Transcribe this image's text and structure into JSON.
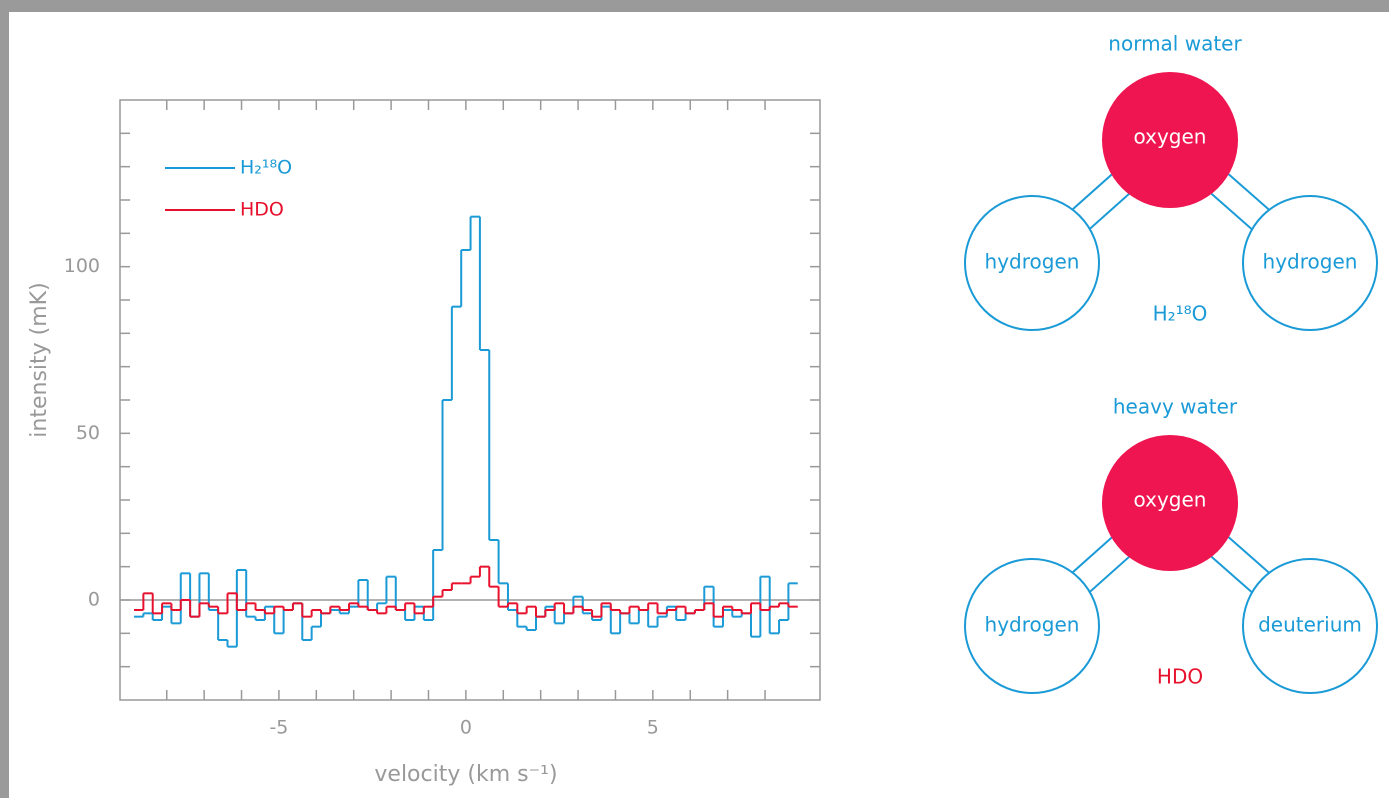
{
  "chart_data": {
    "type": "step",
    "xlabel": "velocity (km s⁻¹)",
    "ylabel": "intensity (mK)",
    "xlim": [
      -9.25,
      9.47
    ],
    "ylim": [
      -30,
      150
    ],
    "xticks": [
      -5,
      0,
      5
    ],
    "yticks": [
      0,
      50,
      100
    ],
    "xminorticks": [
      -8,
      -7,
      -6,
      -5,
      -4,
      -3,
      -2,
      -1,
      0,
      1,
      2,
      3,
      4,
      5,
      6,
      7,
      8
    ],
    "yminorticks": [
      -20,
      -10,
      0,
      10,
      20,
      30,
      40,
      50,
      60,
      70,
      80,
      90,
      100,
      110,
      120,
      130,
      140
    ],
    "legend": "upper left",
    "x": [
      -8.75,
      -8.5,
      -8.25,
      -8,
      -7.75,
      -7.5,
      -7.25,
      -7,
      -6.75,
      -6.5,
      -6.25,
      -6,
      -5.75,
      -5.5,
      -5.25,
      -5,
      -4.75,
      -4.5,
      -4.25,
      -4,
      -3.75,
      -3.5,
      -3.25,
      -3,
      -2.75,
      -2.5,
      -2.25,
      -2,
      -1.75,
      -1.5,
      -1.25,
      -1,
      -0.75,
      -0.5,
      -0.25,
      0,
      0.25,
      0.5,
      0.75,
      1,
      1.25,
      1.5,
      1.75,
      2,
      2.25,
      2.5,
      2.75,
      3,
      3.25,
      3.5,
      3.75,
      4,
      4.25,
      4.5,
      4.75,
      5,
      5.25,
      5.5,
      5.75,
      6,
      6.25,
      6.5,
      6.75,
      7,
      7.25,
      7.5,
      7.75,
      8,
      8.25,
      8.5,
      8.75
    ],
    "series": [
      {
        "name": "H₂¹⁸O",
        "color": "#1a9ad6",
        "values": [
          -5,
          -4,
          -6,
          -2,
          -7,
          8,
          -5,
          8,
          -3,
          -12,
          -14,
          9,
          -5,
          -6,
          -2,
          -10,
          -3,
          -1,
          -12,
          -8,
          -4,
          -3,
          -4,
          -2,
          6,
          -3,
          -1,
          7,
          -3,
          -6,
          -2,
          -6,
          15,
          60,
          88,
          105,
          115,
          75,
          18,
          5,
          -3,
          -8,
          -9,
          -5,
          -2,
          -7,
          -4,
          1,
          -4,
          -6,
          -2,
          -10,
          -4,
          -7,
          -3,
          -8,
          -5,
          -2,
          -6,
          -4,
          -3,
          4,
          -8,
          -3,
          -5,
          -4,
          -11,
          7,
          -10,
          -6,
          5
        ]
      },
      {
        "name": "HDO",
        "color": "#e8112d",
        "values": [
          -3,
          2,
          -4,
          -1,
          -3,
          0,
          -5,
          -1,
          -2,
          -4,
          2,
          -3,
          -1,
          -3,
          -4,
          -2,
          -3,
          -1,
          -5,
          -3,
          -4,
          -2,
          -3,
          -1,
          -2,
          -3,
          -4,
          -2,
          -3,
          -1,
          -4,
          -2,
          1,
          3,
          5,
          5,
          7,
          10,
          4,
          -2,
          -1,
          -4,
          -2,
          -5,
          -3,
          -1,
          -4,
          -2,
          -3,
          -5,
          -1,
          -3,
          -4,
          -2,
          -3,
          -1,
          -4,
          -3,
          -2,
          -4,
          -3,
          -1,
          -5,
          -2,
          -3,
          -4,
          -1,
          -3,
          -2,
          -1,
          -2
        ]
      }
    ]
  },
  "diagram": {
    "molecules": [
      {
        "title": "normal water",
        "formula": "H₂¹⁸O",
        "center": "oxygen",
        "left": "hydrogen",
        "right": "hydrogen"
      },
      {
        "title": "heavy water",
        "formula": "HDO",
        "center": "oxygen",
        "left": "hydrogen",
        "right": "deuterium"
      }
    ]
  }
}
